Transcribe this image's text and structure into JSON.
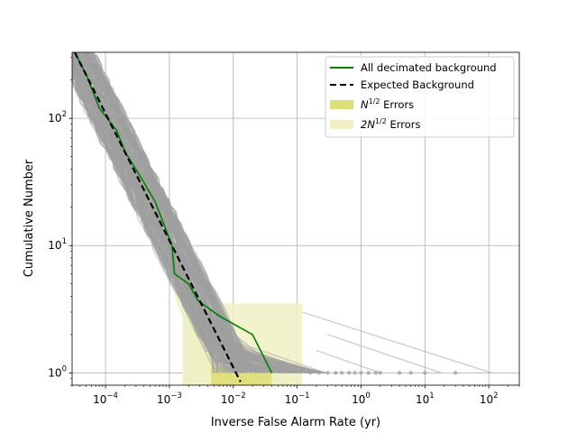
{
  "chart_data": {
    "type": "line",
    "xlabel": "Inverse False Alarm Rate (yr)",
    "ylabel": "Cumulative Number",
    "xscale": "log",
    "yscale": "log",
    "xlim": [
      3e-05,
      300
    ],
    "ylim": [
      0.8,
      330
    ],
    "grid": true,
    "legend_placement": "top-right",
    "x_tick_labels": [
      {
        "base": "10",
        "exp": "−4",
        "value": 0.0001
      },
      {
        "base": "10",
        "exp": "−3",
        "value": 0.001
      },
      {
        "base": "10",
        "exp": "−2",
        "value": 0.01
      },
      {
        "base": "10",
        "exp": "−1",
        "value": 0.1
      },
      {
        "base": "10",
        "exp": "0",
        "value": 1
      },
      {
        "base": "10",
        "exp": "1",
        "value": 10
      },
      {
        "base": "10",
        "exp": "2",
        "value": 100
      }
    ],
    "y_tick_labels": [
      {
        "base": "10",
        "exp": "0",
        "value": 1
      },
      {
        "base": "10",
        "exp": "1",
        "value": 10
      },
      {
        "base": "10",
        "exp": "2",
        "value": 100
      }
    ],
    "legend": [
      {
        "label": "All decimated background",
        "kind": "line",
        "color": "#008000"
      },
      {
        "label": "Expected Background",
        "kind": "dashed",
        "color": "#000000"
      },
      {
        "label_main": "N",
        "label_sup": "1/2",
        "label_rest": " Errors",
        "kind": "patch",
        "color": "#dede77"
      },
      {
        "label_main": "2N",
        "label_sup": "1/2",
        "label_rest": " Errors",
        "kind": "patch",
        "color": "#f0f0c4"
      }
    ],
    "series": [
      {
        "name": "All decimated background",
        "color": "#008000",
        "points": [
          [
            3.3e-05,
            330
          ],
          [
            5e-05,
            220
          ],
          [
            8e-05,
            120
          ],
          [
            0.00015,
            80
          ],
          [
            0.0002,
            55
          ],
          [
            0.00035,
            35
          ],
          [
            0.0006,
            22
          ],
          [
            0.0011,
            10
          ],
          [
            0.0012,
            6
          ],
          [
            0.002,
            5
          ],
          [
            0.0028,
            3.7
          ],
          [
            0.006,
            2.8
          ],
          [
            0.02,
            2
          ],
          [
            0.04,
            1
          ]
        ]
      },
      {
        "name": "Expected Background",
        "color": "#000000",
        "dashed": true,
        "points": [
          [
            3.3e-05,
            330
          ],
          [
            0.013,
            0.85
          ]
        ]
      }
    ],
    "trial_curves": {
      "color": "#a0a0a0",
      "count": 200,
      "x_end_range": [
        0.003,
        0.3
      ],
      "outlier_points_x": [
        0.16,
        0.22,
        0.3,
        0.4,
        0.5,
        0.65,
        0.8,
        1.0,
        1.3,
        1.7,
        2.0,
        4.0,
        6.0,
        10.0,
        30.0
      ],
      "outlier_y": 1
    }
  }
}
